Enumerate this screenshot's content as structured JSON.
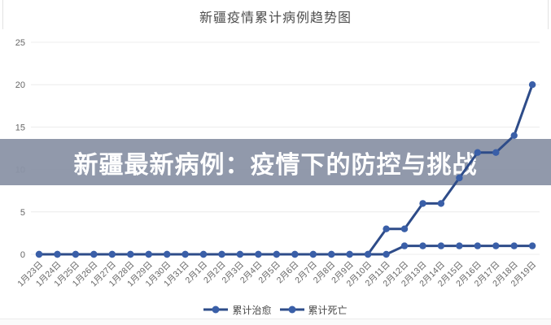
{
  "banner": {
    "text": "新疆最新病例：疫情下的防控与挑战",
    "bg_color": "rgba(139,148,166,0.95)",
    "text_color": "#ffffff"
  },
  "chart_data": {
    "type": "line",
    "title": "新疆疫情累计病例趋势图",
    "categories": [
      "1月23日",
      "1月24日",
      "1月25日",
      "1月26日",
      "1月27日",
      "1月28日",
      "1月29日",
      "1月30日",
      "1月31日",
      "2月1日",
      "2月2日",
      "2月3日",
      "2月4日",
      "2月5日",
      "2月6日",
      "2月7日",
      "2月8日",
      "2月9日",
      "2月10日",
      "2月11日",
      "2月12日",
      "2月13日",
      "2月14日",
      "2月15日",
      "2月16日",
      "2月17日",
      "2月18日",
      "2月19日"
    ],
    "series": [
      {
        "name": "累计治愈",
        "color": "#2e4c89",
        "marker_color": "#3a5fa8",
        "values": [
          0,
          0,
          0,
          0,
          0,
          0,
          0,
          0,
          0,
          0,
          0,
          0,
          0,
          0,
          0,
          0,
          0,
          0,
          0,
          3,
          3,
          6,
          6,
          9,
          12,
          12,
          14,
          20
        ]
      },
      {
        "name": "累计死亡",
        "color": "#2e4c89",
        "marker_color": "#3a5fa8",
        "values": [
          0,
          0,
          0,
          0,
          0,
          0,
          0,
          0,
          0,
          0,
          0,
          0,
          0,
          0,
          0,
          0,
          0,
          0,
          0,
          0,
          1,
          1,
          1,
          1,
          1,
          1,
          1,
          1
        ]
      }
    ],
    "xlabel": "",
    "ylabel": "",
    "ylim": [
      0,
      25
    ],
    "yticks": [
      0,
      5,
      10,
      15,
      20,
      25
    ],
    "grid": true,
    "grid_color": "#ececec",
    "axis_label_color": "#666666",
    "legend_position": "bottom"
  }
}
